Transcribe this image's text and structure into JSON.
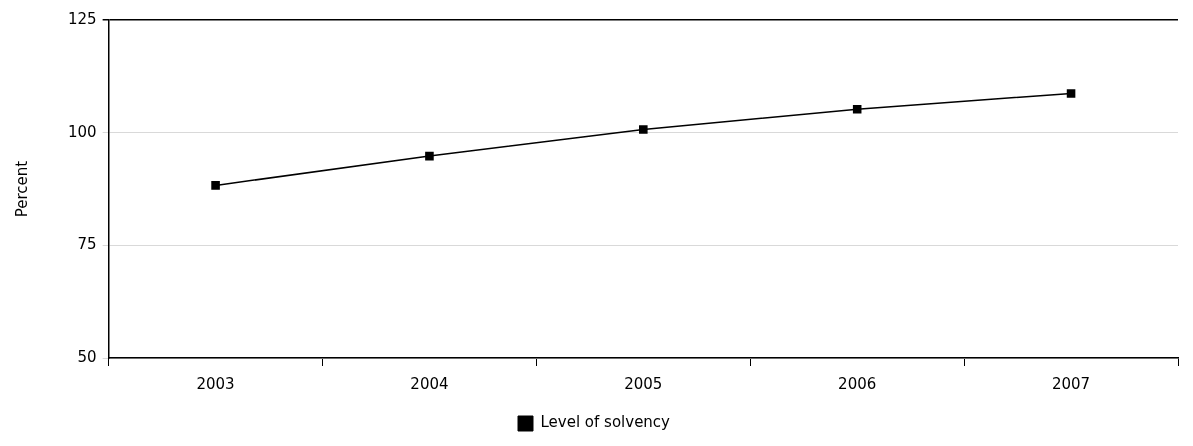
{
  "chart_data": {
    "type": "line",
    "ylabel": "Percent",
    "categories": [
      "2003",
      "2004",
      "2005",
      "2006",
      "2007"
    ],
    "series": [
      {
        "name": "Level of solvency",
        "color": "#000000",
        "values": [
          88.3,
          94.8,
          100.7,
          105.2,
          108.7
        ]
      }
    ],
    "ylim": [
      50,
      125
    ],
    "yticks": [
      50,
      75,
      100,
      125
    ],
    "grid": "y",
    "legend": "bottom",
    "marker": "square",
    "line_style": "solid"
  }
}
